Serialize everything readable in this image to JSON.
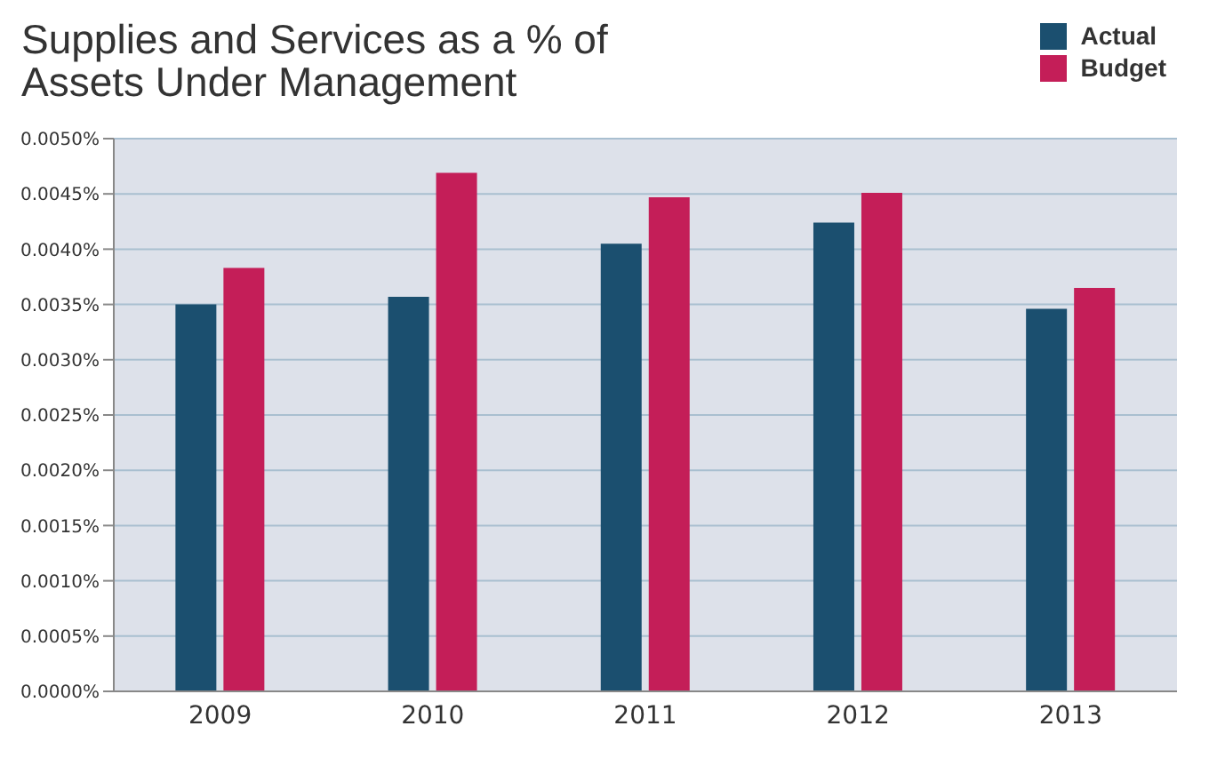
{
  "chart_data": {
    "type": "bar",
    "title": "Supplies and Services as a % of\nAssets Under Management",
    "categories": [
      "2009",
      "2010",
      "2011",
      "2012",
      "2013"
    ],
    "series": [
      {
        "name": "Actual",
        "color": "#1b4f6f",
        "values": [
          0.0035,
          0.00357,
          0.00405,
          0.00424,
          0.00346
        ]
      },
      {
        "name": "Budget",
        "color": "#c41e58",
        "values": [
          0.00383,
          0.00469,
          0.00447,
          0.00451,
          0.00365
        ]
      }
    ],
    "ylim": [
      0,
      0.005
    ],
    "yticks": [
      {
        "value": 0,
        "label": "0.0000%"
      },
      {
        "value": 0.0005,
        "label": "0.0005%"
      },
      {
        "value": 0.001,
        "label": "0.0010%"
      },
      {
        "value": 0.0015,
        "label": "0.0015%"
      },
      {
        "value": 0.002,
        "label": "0.0020%"
      },
      {
        "value": 0.0025,
        "label": "0.0025%"
      },
      {
        "value": 0.003,
        "label": "0.0030%"
      },
      {
        "value": 0.0035,
        "label": "0.0035%"
      },
      {
        "value": 0.004,
        "label": "0.0040%"
      },
      {
        "value": 0.0045,
        "label": "0.0045%"
      },
      {
        "value": 0.005,
        "label": "0.0050%"
      }
    ],
    "grid": "y",
    "legend": "top right"
  }
}
